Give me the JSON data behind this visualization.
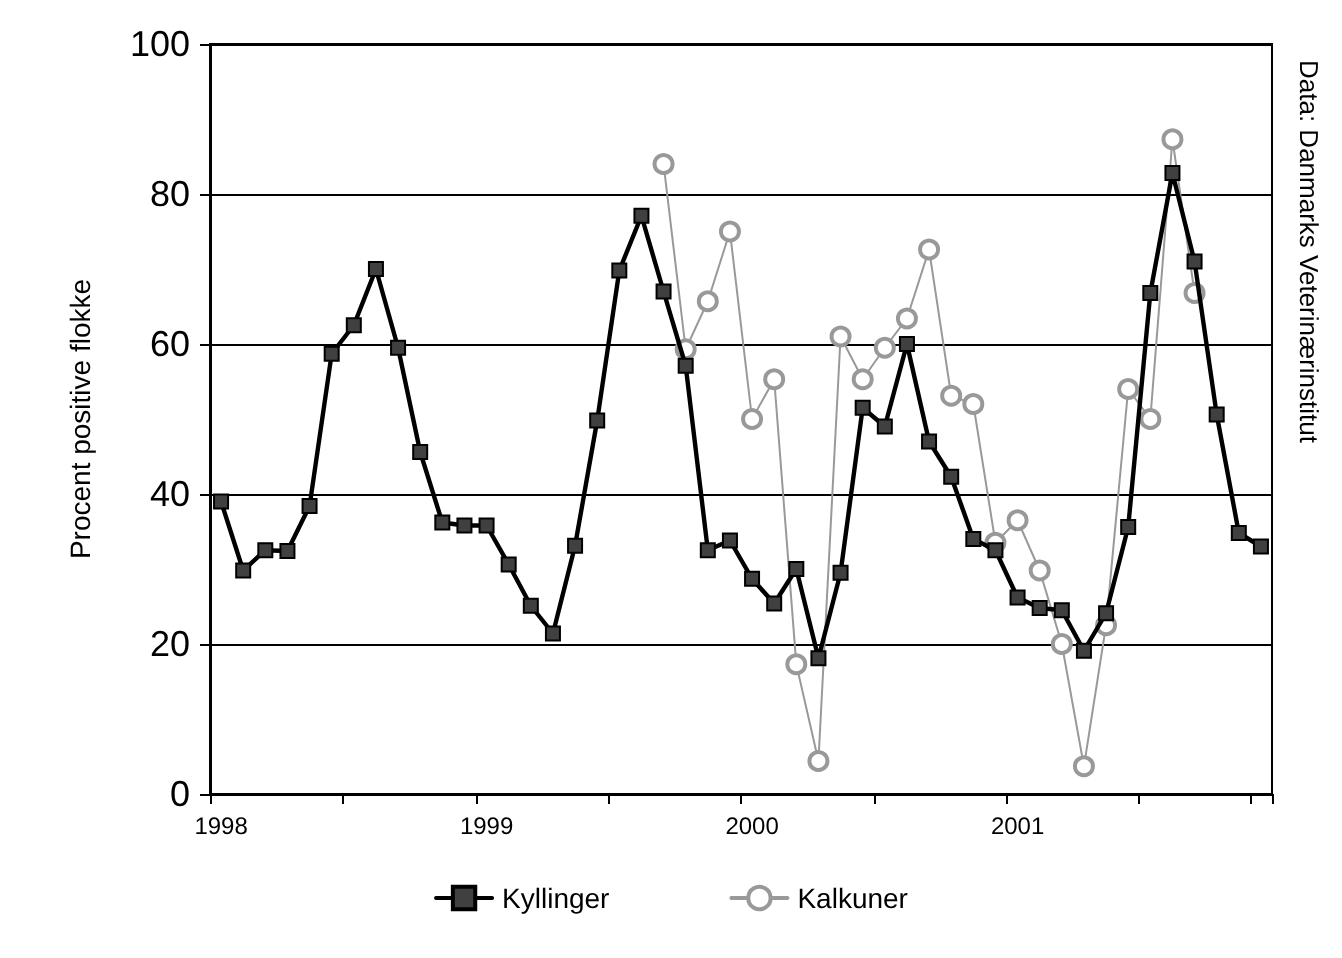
{
  "chart_data": {
    "type": "line",
    "ylabel": "Procent positive flokke",
    "annotations": [
      "Data: Danmarks Veterinærinstitut"
    ],
    "categories": [
      "1998",
      null,
      null,
      null,
      null,
      null,
      null,
      null,
      null,
      null,
      null,
      null,
      "1999",
      null,
      null,
      null,
      null,
      null,
      null,
      null,
      null,
      null,
      null,
      null,
      "2000",
      null,
      null,
      null,
      null,
      null,
      null,
      null,
      null,
      null,
      null,
      null,
      "2001",
      null,
      null,
      null,
      null,
      null,
      null,
      null,
      null,
      null,
      null,
      null
    ],
    "series": [
      {
        "name": "Kyllinger",
        "color": "#000000",
        "marker": "square",
        "values": [
          39.0,
          29.8,
          32.5,
          32.4,
          38.4,
          58.7,
          62.5,
          70.0,
          59.5,
          45.6,
          36.2,
          35.8,
          35.8,
          30.6,
          25.1,
          21.4,
          33.1,
          49.8,
          69.8,
          77.1,
          67.0,
          57.1,
          32.5,
          33.8,
          28.7,
          25.4,
          30.0,
          18.1,
          29.5,
          51.5,
          49.0,
          60.0,
          47.0,
          42.3,
          34.0,
          32.5,
          26.2,
          24.8,
          24.5,
          19.1,
          24.1,
          35.6,
          66.8,
          82.8,
          71.0,
          50.6,
          34.8,
          33.0
        ]
      },
      {
        "name": "Kalkuner",
        "color": "#999999",
        "marker": "circle",
        "values": [
          null,
          null,
          null,
          null,
          null,
          null,
          null,
          null,
          null,
          null,
          null,
          null,
          null,
          null,
          null,
          null,
          null,
          null,
          null,
          null,
          84.0,
          59.3,
          65.7,
          75.0,
          50.0,
          55.3,
          17.3,
          4.4,
          61.0,
          55.3,
          59.5,
          63.4,
          72.6,
          53.1,
          52.0,
          33.5,
          36.5,
          29.8,
          20.0,
          3.7,
          22.5,
          54.0,
          50.0,
          87.3,
          66.8,
          null,
          null,
          null
        ]
      }
    ],
    "ylim": [
      0,
      100
    ],
    "yticks": [
      0,
      20,
      40,
      60,
      80,
      100
    ],
    "grid": "y",
    "legend": "bottom"
  }
}
